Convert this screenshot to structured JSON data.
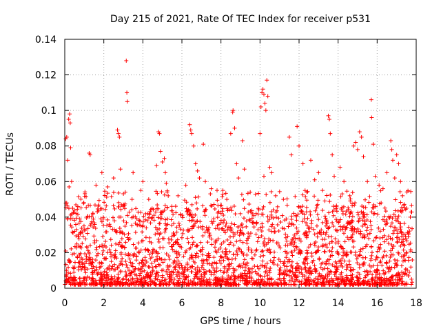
{
  "chart_data": {
    "type": "scatter",
    "title": "Day 215 of 2021, Rate Of TEC Index for receiver p531",
    "xlabel": "GPS time / hours",
    "ylabel": "ROTI / TECUs",
    "xlim": [
      0,
      18
    ],
    "ylim": [
      0,
      0.14
    ],
    "x_ticks": [
      "0",
      "2",
      "4",
      "6",
      "8",
      "10",
      "12",
      "14",
      "16",
      "18"
    ],
    "y_ticks": [
      "0",
      "0.02",
      "0.04",
      "0.06",
      "0.08",
      "0.1",
      "0.12",
      "0.14"
    ],
    "grid": true,
    "marker": "+",
    "color": "#ff0000",
    "series": [
      {
        "name": "ROTI",
        "points": [
          [
            0.05,
            0.084
          ],
          [
            0.1,
            0.085
          ],
          [
            0.15,
            0.072
          ],
          [
            0.2,
            0.095
          ],
          [
            0.25,
            0.098
          ],
          [
            0.28,
            0.093
          ],
          [
            0.3,
            0.079
          ],
          [
            0.35,
            0.06
          ],
          [
            0.22,
            0.057
          ],
          [
            0.1,
            0.048
          ],
          [
            0.4,
            0.045
          ],
          [
            0.5,
            0.032
          ],
          [
            1.25,
            0.076
          ],
          [
            1.3,
            0.075
          ],
          [
            1.6,
            0.058
          ],
          [
            1.9,
            0.065
          ],
          [
            2.2,
            0.057
          ],
          [
            2.5,
            0.062
          ],
          [
            2.7,
            0.089
          ],
          [
            2.75,
            0.087
          ],
          [
            2.8,
            0.085
          ],
          [
            2.85,
            0.067
          ],
          [
            3.15,
            0.128
          ],
          [
            3.18,
            0.11
          ],
          [
            3.2,
            0.105
          ],
          [
            3.1,
            0.054
          ],
          [
            3.0,
            0.047
          ],
          [
            3.5,
            0.065
          ],
          [
            3.9,
            0.055
          ],
          [
            4.0,
            0.06
          ],
          [
            4.3,
            0.05
          ],
          [
            4.7,
            0.069
          ],
          [
            4.8,
            0.088
          ],
          [
            4.85,
            0.087
          ],
          [
            4.9,
            0.077
          ],
          [
            5.0,
            0.071
          ],
          [
            5.1,
            0.073
          ],
          [
            5.15,
            0.065
          ],
          [
            5.2,
            0.059
          ],
          [
            5.3,
            0.052
          ],
          [
            5.8,
            0.052
          ],
          [
            6.2,
            0.058
          ],
          [
            6.4,
            0.092
          ],
          [
            6.45,
            0.089
          ],
          [
            6.5,
            0.087
          ],
          [
            6.6,
            0.08
          ],
          [
            6.7,
            0.07
          ],
          [
            6.8,
            0.066
          ],
          [
            6.9,
            0.062
          ],
          [
            7.1,
            0.081
          ],
          [
            7.2,
            0.06
          ],
          [
            7.5,
            0.056
          ],
          [
            7.8,
            0.055
          ],
          [
            8.1,
            0.055
          ],
          [
            8.3,
            0.05
          ],
          [
            8.5,
            0.087
          ],
          [
            8.6,
            0.099
          ],
          [
            8.62,
            0.1
          ],
          [
            8.7,
            0.09
          ],
          [
            8.8,
            0.07
          ],
          [
            8.9,
            0.062
          ],
          [
            9.1,
            0.083
          ],
          [
            9.2,
            0.067
          ],
          [
            9.5,
            0.054
          ],
          [
            9.8,
            0.042
          ],
          [
            10.0,
            0.087
          ],
          [
            10.05,
            0.102
          ],
          [
            10.1,
            0.11
          ],
          [
            10.15,
            0.112
          ],
          [
            10.2,
            0.109
          ],
          [
            10.25,
            0.104
          ],
          [
            10.3,
            0.1
          ],
          [
            10.35,
            0.117
          ],
          [
            10.4,
            0.108
          ],
          [
            10.5,
            0.068
          ],
          [
            10.6,
            0.065
          ],
          [
            10.2,
            0.063
          ],
          [
            10.8,
            0.052
          ],
          [
            11.2,
            0.05
          ],
          [
            11.5,
            0.085
          ],
          [
            11.6,
            0.075
          ],
          [
            11.9,
            0.091
          ],
          [
            12.0,
            0.08
          ],
          [
            12.2,
            0.07
          ],
          [
            12.4,
            0.054
          ],
          [
            12.6,
            0.072
          ],
          [
            12.8,
            0.061
          ],
          [
            13.0,
            0.065
          ],
          [
            13.2,
            0.055
          ],
          [
            13.5,
            0.097
          ],
          [
            13.55,
            0.095
          ],
          [
            13.6,
            0.087
          ],
          [
            13.7,
            0.075
          ],
          [
            13.8,
            0.063
          ],
          [
            14.1,
            0.068
          ],
          [
            14.3,
            0.06
          ],
          [
            14.6,
            0.052
          ],
          [
            14.8,
            0.08
          ],
          [
            14.9,
            0.082
          ],
          [
            15.0,
            0.078
          ],
          [
            15.1,
            0.088
          ],
          [
            15.2,
            0.085
          ],
          [
            15.3,
            0.074
          ],
          [
            15.5,
            0.06
          ],
          [
            15.7,
            0.106
          ],
          [
            15.72,
            0.096
          ],
          [
            15.8,
            0.081
          ],
          [
            15.9,
            0.063
          ],
          [
            16.1,
            0.058
          ],
          [
            16.3,
            0.056
          ],
          [
            16.5,
            0.065
          ],
          [
            16.7,
            0.083
          ],
          [
            16.75,
            0.078
          ],
          [
            16.8,
            0.072
          ],
          [
            16.9,
            0.062
          ],
          [
            17.0,
            0.075
          ],
          [
            17.1,
            0.07
          ],
          [
            17.2,
            0.06
          ],
          [
            17.3,
            0.052
          ],
          [
            17.5,
            0.045
          ],
          [
            17.7,
            0.04
          ],
          [
            17.6,
            0.029
          ],
          [
            17.4,
            0.024
          ]
        ]
      }
    ],
    "annotations": "dense band of points between 0.002 and ~0.045 TECUs across 0-17.8 hours"
  }
}
